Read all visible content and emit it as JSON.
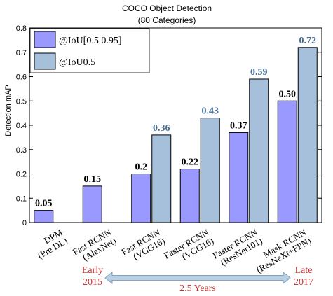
{
  "chart_data": {
    "type": "bar",
    "title": "COCO Object Detection",
    "subtitle": "(80 Categories)",
    "ylabel": "Detection mAP",
    "xlabel": "",
    "ylim": [
      0,
      0.8
    ],
    "yticks": [
      "0",
      "0.1",
      "0.2",
      "0.3",
      "0.4",
      "0.5",
      "0.6",
      "0.7",
      "0.8"
    ],
    "categories": [
      [
        "DPM",
        "(Pre DL)"
      ],
      [
        "Fast RCNN",
        "(AlexNet)"
      ],
      [
        "Fast RCNN",
        "(VGG16)"
      ],
      [
        "Faster RCNN",
        "(VGG16)"
      ],
      [
        "Faster RCNN",
        "(ResNet101)"
      ],
      [
        "Mask RCNN",
        "(ResNeXt+FPN)"
      ]
    ],
    "series": [
      {
        "name": "@IoU[0.5 0.95]",
        "color": "#9999ff",
        "values": [
          0.05,
          0.15,
          0.2,
          0.22,
          0.37,
          0.5
        ],
        "labels": [
          "0.05",
          "0.15",
          "0.2",
          "0.22",
          "0.37",
          "0.50"
        ],
        "label_color": "#000000"
      },
      {
        "name": "@IoU0.5",
        "color": "#a6bfdb",
        "values": [
          null,
          null,
          0.36,
          0.43,
          0.59,
          0.72
        ],
        "labels": [
          "",
          "",
          "0.36",
          "0.43",
          "0.59",
          "0.72"
        ],
        "label_color": "#4a6f96"
      }
    ],
    "legend_position": "top-left",
    "grid": false
  },
  "timeline": {
    "start_label": [
      "Early",
      "2015"
    ],
    "end_label": [
      "Late",
      "2017"
    ],
    "span_label": "2.5 Years",
    "label_color": "#cc3333",
    "arrow_color": "#b9d0e4"
  }
}
